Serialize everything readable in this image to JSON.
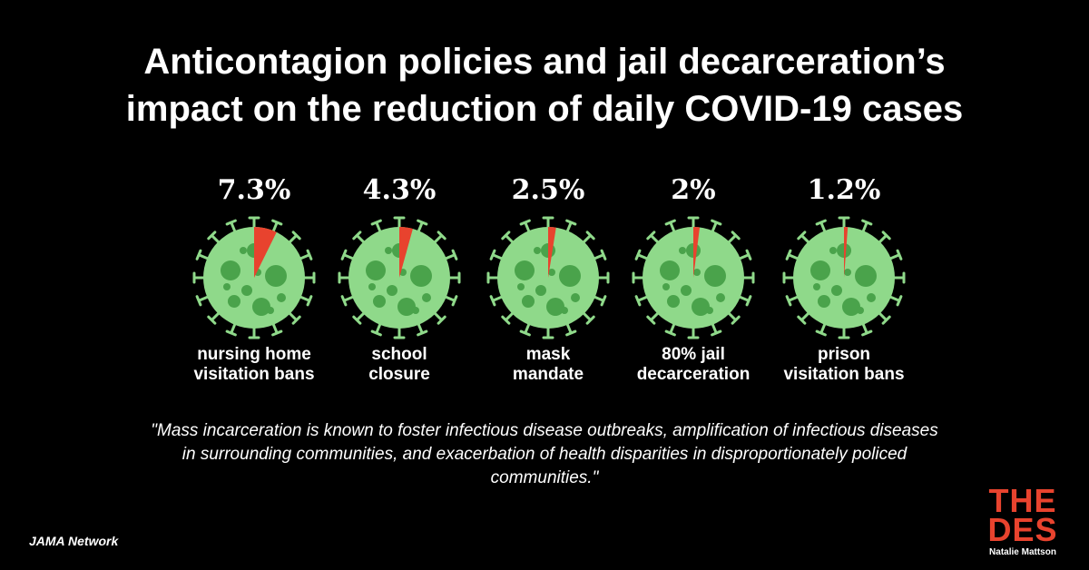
{
  "title": {
    "line1": "Anticontagion policies and jail decarceration’s",
    "line2": "impact on the reduction of daily COVID-19 cases"
  },
  "chart_data": {
    "type": "pie",
    "items": [
      {
        "value_label": "7.3%",
        "value": 7.3,
        "label_lines": [
          "nursing home",
          "visitation bans"
        ]
      },
      {
        "value_label": "4.3%",
        "value": 4.3,
        "label_lines": [
          "school",
          "closure"
        ]
      },
      {
        "value_label": "2.5%",
        "value": 2.5,
        "label_lines": [
          "mask",
          "mandate"
        ]
      },
      {
        "value_label": "2%",
        "value": 2,
        "label_lines": [
          "80% jail",
          "decarceration"
        ]
      },
      {
        "value_label": "1.2%",
        "value": 1.2,
        "label_lines": [
          "prison",
          "visitation bans"
        ]
      }
    ]
  },
  "quote": "\"Mass incarceration is known to foster infectious disease outbreaks, amplification of infectious diseases in surrounding communities, and exacerbation of health disparities in disproportionately policed communities.\"",
  "source": "JAMA Network",
  "logo": {
    "line1": "THE",
    "line2": "DES",
    "credit": "Natalie Mattson"
  },
  "colors": {
    "virus_body": "#8fd98a",
    "virus_dark": "#4aa34b",
    "virus_spike": "#8fd98a",
    "slice": "#e8432e",
    "background": "#000000",
    "text": "#ffffff"
  },
  "icons": {
    "virus": "virus-icon"
  }
}
